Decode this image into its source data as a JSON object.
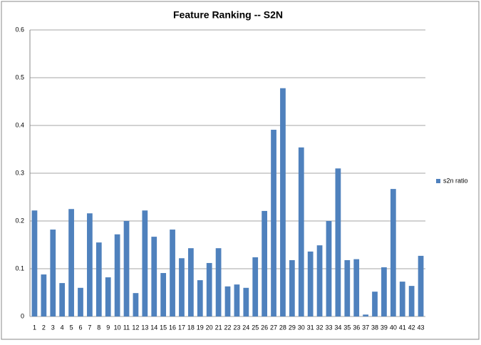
{
  "chart_data": {
    "type": "bar",
    "title": "Feature Ranking -- S2N",
    "categories": [
      "1",
      "2",
      "3",
      "4",
      "5",
      "6",
      "7",
      "8",
      "9",
      "10",
      "11",
      "12",
      "13",
      "14",
      "15",
      "16",
      "17",
      "18",
      "19",
      "20",
      "21",
      "22",
      "23",
      "24",
      "25",
      "26",
      "27",
      "28",
      "29",
      "30",
      "31",
      "32",
      "33",
      "34",
      "35",
      "36",
      "37",
      "38",
      "39",
      "40",
      "41",
      "42",
      "43"
    ],
    "series": [
      {
        "name": "s2n ratio",
        "color": "#4f81bd",
        "values": [
          0.222,
          0.088,
          0.182,
          0.07,
          0.225,
          0.06,
          0.216,
          0.155,
          0.082,
          0.172,
          0.2,
          0.049,
          0.222,
          0.167,
          0.091,
          0.182,
          0.122,
          0.143,
          0.076,
          0.112,
          0.143,
          0.063,
          0.067,
          0.06,
          0.124,
          0.221,
          0.391,
          0.478,
          0.118,
          0.354,
          0.136,
          0.149,
          0.2,
          0.31,
          0.118,
          0.12,
          0.004,
          0.052,
          0.103,
          0.267,
          0.073,
          0.064,
          0.127
        ]
      }
    ],
    "ylim": [
      0,
      0.6
    ],
    "yticks": [
      0,
      0.1,
      0.2,
      0.3,
      0.4,
      0.5,
      0.6
    ],
    "grid": true,
    "legend": "right"
  }
}
